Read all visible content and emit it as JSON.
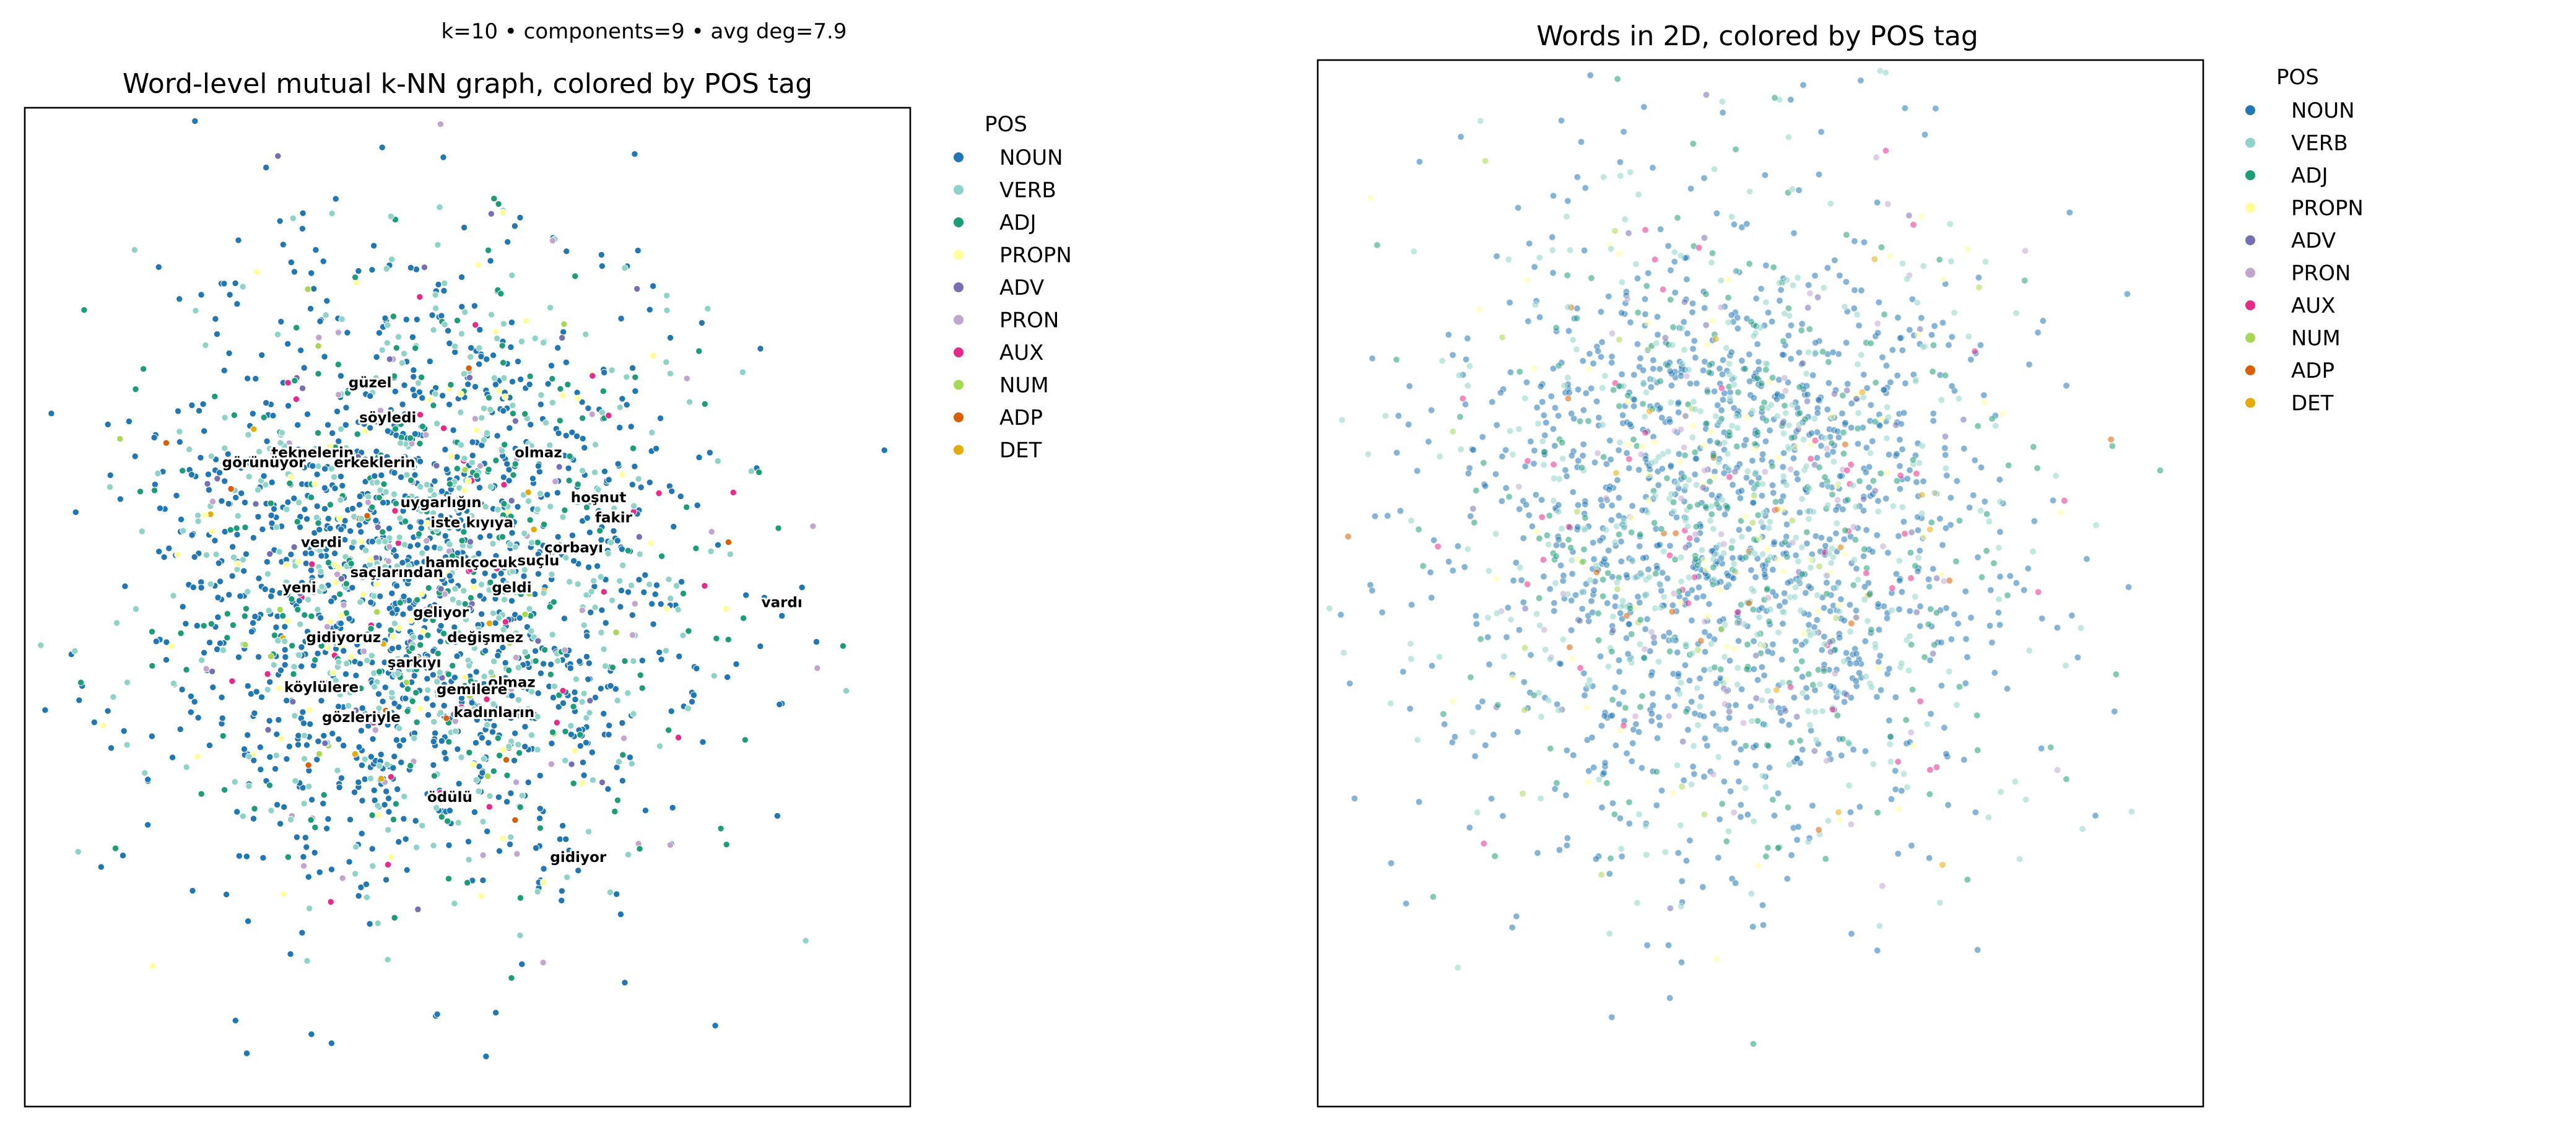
{
  "figure_caption": "k=10 • components=9 • avg deg=7.9",
  "pos_colors": {
    "NOUN": "#1f77b4",
    "VERB": "#8dd3c7",
    "ADJ": "#1b9e77",
    "PROPN": "#ffff99",
    "ADV": "#7570b3",
    "PRON": "#c2a5cf",
    "AUX": "#e7298a",
    "NUM": "#a6d854",
    "ADP": "#d95f02",
    "DET": "#e6ab02"
  },
  "chart_data": [
    {
      "type": "scatter",
      "title": "Word-level mutual k-NN graph, colored by POS tag",
      "subtitle": "k=10 • components=9 • avg deg=7.9",
      "xlabel": "",
      "ylabel": "",
      "axes_visible": false,
      "xlim": [
        -5,
        5
      ],
      "ylim": [
        -5,
        5
      ],
      "legend": {
        "title": "POS",
        "placement": "outside-right-top",
        "entries": [
          "NOUN",
          "VERB",
          "ADJ",
          "PROPN",
          "ADV",
          "PRON",
          "AUX",
          "NUM",
          "ADP",
          "DET"
        ]
      },
      "point_alpha": 1.0,
      "n_points_approx": 2300,
      "pos_proportions": {
        "NOUN": 0.55,
        "VERB": 0.2,
        "ADJ": 0.12,
        "PROPN": 0.04,
        "ADV": 0.02,
        "PRON": 0.03,
        "AUX": 0.02,
        "NUM": 0.01,
        "ADP": 0.005,
        "DET": 0.005
      },
      "cloud": {
        "center": [
          -0.5,
          0.3
        ],
        "std": [
          1.55,
          1.5
        ]
      },
      "labeled_words": [
        {
          "word": "güzel",
          "x": -1.1,
          "y": 2.2
        },
        {
          "word": "söyledi",
          "x": -0.9,
          "y": 1.85
        },
        {
          "word": "teknelerin",
          "x": -1.75,
          "y": 1.5
        },
        {
          "word": "olmaz",
          "x": 0.8,
          "y": 1.5
        },
        {
          "word": "görünüyor",
          "x": -2.3,
          "y": 1.4
        },
        {
          "word": "erkeklerin",
          "x": -1.05,
          "y": 1.4
        },
        {
          "word": "hoşnut",
          "x": 1.48,
          "y": 1.05
        },
        {
          "word": "uygarlığın",
          "x": -0.3,
          "y": 1.0
        },
        {
          "word": "fakir",
          "x": 1.65,
          "y": 0.85
        },
        {
          "word": "iste",
          "x": -0.25,
          "y": 0.8
        },
        {
          "word": "kıyıya",
          "x": 0.25,
          "y": 0.8
        },
        {
          "word": "verdi",
          "x": -1.65,
          "y": 0.6
        },
        {
          "word": "çorbayı",
          "x": 1.2,
          "y": 0.55
        },
        {
          "word": "hamle",
          "x": -0.2,
          "y": 0.4
        },
        {
          "word": "çocuk",
          "x": 0.3,
          "y": 0.4
        },
        {
          "word": "suçlu",
          "x": 0.8,
          "y": 0.42
        },
        {
          "word": "saçlarından",
          "x": -0.8,
          "y": 0.3
        },
        {
          "word": "yeni",
          "x": -1.9,
          "y": 0.15
        },
        {
          "word": "geldi",
          "x": 0.5,
          "y": 0.15
        },
        {
          "word": "geliyor",
          "x": -0.3,
          "y": -0.1
        },
        {
          "word": "gidiyoruz",
          "x": -1.4,
          "y": -0.35
        },
        {
          "word": "değişmez",
          "x": 0.2,
          "y": -0.35
        },
        {
          "word": "şarkıyı",
          "x": -0.6,
          "y": -0.6
        },
        {
          "word": "köylülere",
          "x": -1.65,
          "y": -0.85
        },
        {
          "word": "olmaz",
          "x": 0.5,
          "y": -0.8
        },
        {
          "word": "gemilere",
          "x": 0.05,
          "y": -0.87
        },
        {
          "word": "kadınların",
          "x": 0.3,
          "y": -1.1
        },
        {
          "word": "gözleriyle",
          "x": -1.2,
          "y": -1.15
        },
        {
          "word": "ödülü",
          "x": -0.2,
          "y": -1.95
        },
        {
          "word": "gidiyor",
          "x": 1.25,
          "y": -2.55
        },
        {
          "word": "vardı",
          "x": 3.55,
          "y": 0.0
        }
      ]
    },
    {
      "type": "scatter",
      "title": "Words in 2D, colored by POS tag",
      "xlabel": "",
      "ylabel": "",
      "axes_visible": false,
      "xlim": [
        -5,
        5
      ],
      "ylim": [
        -5,
        5
      ],
      "legend": {
        "title": "POS",
        "placement": "outside-right-top",
        "entries": [
          "NOUN",
          "VERB",
          "ADJ",
          "PROPN",
          "ADV",
          "PRON",
          "AUX",
          "NUM",
          "ADP",
          "DET"
        ]
      },
      "point_alpha": 0.55,
      "n_points_approx": 2300,
      "pos_proportions": {
        "NOUN": 0.55,
        "VERB": 0.2,
        "ADJ": 0.12,
        "PROPN": 0.04,
        "ADV": 0.02,
        "PRON": 0.03,
        "AUX": 0.02,
        "NUM": 0.01,
        "ADP": 0.005,
        "DET": 0.005
      },
      "cloud": {
        "center": [
          -0.3,
          0.6
        ],
        "std": [
          1.6,
          1.55
        ]
      }
    }
  ]
}
